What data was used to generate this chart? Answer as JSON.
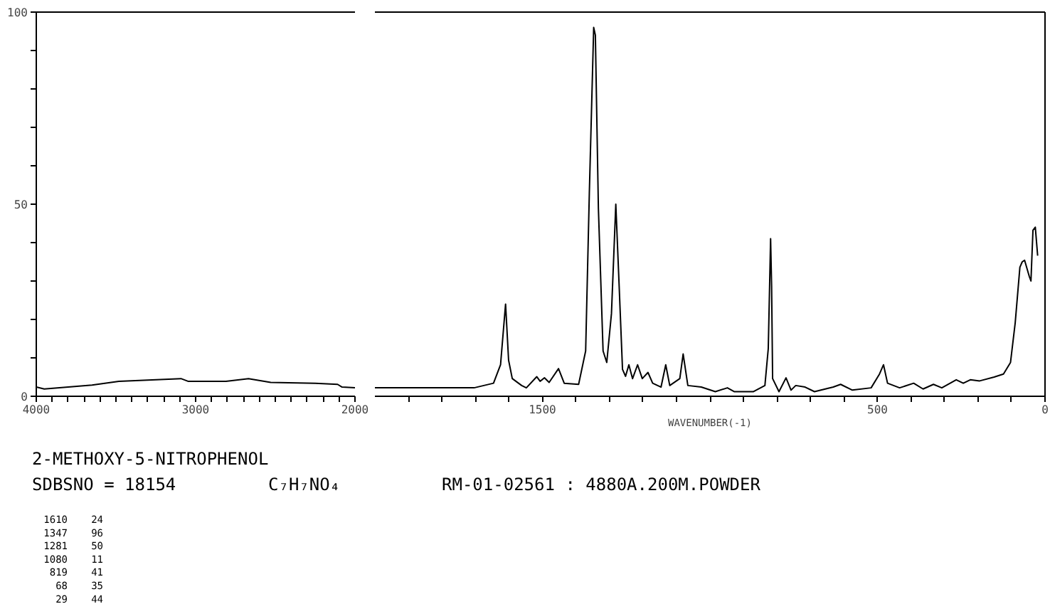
{
  "chart_data": [
    {
      "type": "line",
      "title": "2-METHOXY-5-NITROPHENOL",
      "annotations": [
        "SDBSNO = 18154",
        "C₇H₇NO₄",
        "RM-01-02561 : 4880A.200M.POWDER",
        "1610 24",
        "1347 96",
        "1281 50",
        "1080 11",
        "819 41",
        "68 35",
        "29 44"
      ],
      "color": "#000000",
      "tick_labels": "xy",
      "xlim": [
        4000,
        2000
      ],
      "ylim": [
        0,
        100
      ],
      "xticks": [
        4000,
        {
          "value": 3900,
          "label": null
        },
        {
          "value": 3800,
          "label": null
        },
        {
          "value": 3700,
          "label": null
        },
        {
          "value": 3600,
          "label": null
        },
        {
          "value": 3500,
          "label": null
        },
        {
          "value": 3400,
          "label": null
        },
        {
          "value": 3300,
          "label": null
        },
        {
          "value": 3200,
          "label": null
        },
        {
          "value": 3100,
          "label": null
        },
        3000,
        {
          "value": 2900,
          "label": null
        },
        {
          "value": 2800,
          "label": null
        },
        {
          "value": 2700,
          "label": null
        },
        {
          "value": 2600,
          "label": null
        },
        {
          "value": 2500,
          "label": null
        },
        {
          "value": 2400,
          "label": null
        },
        {
          "value": 2300,
          "label": null
        },
        {
          "value": 2200,
          "label": null
        },
        {
          "value": 2100,
          "label": null
        },
        2000
      ],
      "yticks": [
        0,
        {
          "value": 10,
          "label": null
        },
        {
          "value": 20,
          "label": null
        },
        {
          "value": 30,
          "label": null
        },
        {
          "value": 40,
          "label": null
        },
        50,
        {
          "value": 60,
          "label": null
        },
        {
          "value": 70,
          "label": null
        },
        {
          "value": 80,
          "label": null
        },
        {
          "value": 90,
          "label": null
        },
        100
      ],
      "x": [
        4000,
        3950,
        3650,
        3482,
        3092,
        3048,
        2810,
        2668,
        2529,
        2249,
        2109,
        2081,
        2000
      ],
      "values": [
        2.4,
        1.9,
        2.9,
        3.9,
        4.6,
        3.9,
        3.9,
        4.6,
        3.6,
        3.4,
        3.1,
        2.4,
        2.2
      ]
    },
    {
      "type": "line",
      "xlabel": "WAVENUMBER(-1)",
      "color": "#000000",
      "tick_labels": "x",
      "xlim": [
        2000,
        0
      ],
      "ylim": [
        0,
        100
      ],
      "xticks": [
        {
          "value": 1900,
          "label": null
        },
        {
          "value": 1800,
          "label": null
        },
        {
          "value": 1700,
          "label": null
        },
        {
          "value": 1600,
          "label": null
        },
        1500,
        {
          "value": 1400,
          "label": null
        },
        {
          "value": 1300,
          "label": null
        },
        {
          "value": 1200,
          "label": null
        },
        {
          "value": 1100,
          "label": null
        },
        {
          "value": 1000,
          "label": null
        },
        {
          "value": 900,
          "label": null
        },
        {
          "value": 800,
          "label": null
        },
        {
          "value": 700,
          "label": null
        },
        {
          "value": 600,
          "label": null
        },
        500,
        {
          "value": 400,
          "label": null
        },
        {
          "value": 300,
          "label": null
        },
        {
          "value": 200,
          "label": null
        },
        {
          "value": 100,
          "label": null
        },
        0
      ],
      "x": [
        2000,
        1844,
        1704,
        1646,
        1625,
        1610,
        1601,
        1590,
        1562,
        1548,
        1517,
        1507,
        1494,
        1480,
        1452,
        1435,
        1392,
        1371,
        1360,
        1347,
        1342,
        1333,
        1319,
        1308,
        1294,
        1281,
        1271,
        1261,
        1252,
        1242,
        1231,
        1216,
        1202,
        1185,
        1171,
        1146,
        1132,
        1120,
        1090,
        1080,
        1066,
        1026,
        984,
        948,
        927,
        871,
        836,
        826,
        819,
        816,
        813,
        794,
        773,
        758,
        744,
        716,
        688,
        632,
        610,
        575,
        519,
        494,
        482,
        470,
        434,
        392,
        364,
        333,
        308,
        265,
        244,
        223,
        195,
        152,
        124,
        103,
        89,
        75,
        68,
        61,
        47,
        42,
        36,
        29,
        22
      ],
      "values": [
        2.2,
        2.2,
        2.2,
        3.4,
        8.2,
        24,
        9.4,
        4.6,
        2.8,
        2.2,
        5.1,
        3.9,
        4.8,
        3.6,
        7.2,
        3.4,
        3.1,
        11.8,
        52.9,
        96,
        94,
        49,
        11.8,
        8.8,
        21.5,
        50,
        28.7,
        7.0,
        5.2,
        8.2,
        4.6,
        8.2,
        4.6,
        6.2,
        3.4,
        2.4,
        8.2,
        2.8,
        4.6,
        11,
        2.8,
        2.4,
        1.2,
        2.2,
        1.2,
        1.2,
        2.8,
        12.4,
        41,
        28.7,
        4.6,
        1.2,
        4.8,
        1.6,
        2.8,
        2.4,
        1.2,
        2.4,
        3.1,
        1.6,
        2.2,
        5.8,
        8.2,
        3.4,
        2.2,
        3.4,
        1.9,
        3.1,
        2.2,
        4.3,
        3.4,
        4.3,
        4.0,
        5.0,
        5.8,
        8.8,
        19.1,
        33.6,
        35,
        35.4,
        31.2,
        30,
        43.2,
        44,
        36.6
      ]
    }
  ]
}
